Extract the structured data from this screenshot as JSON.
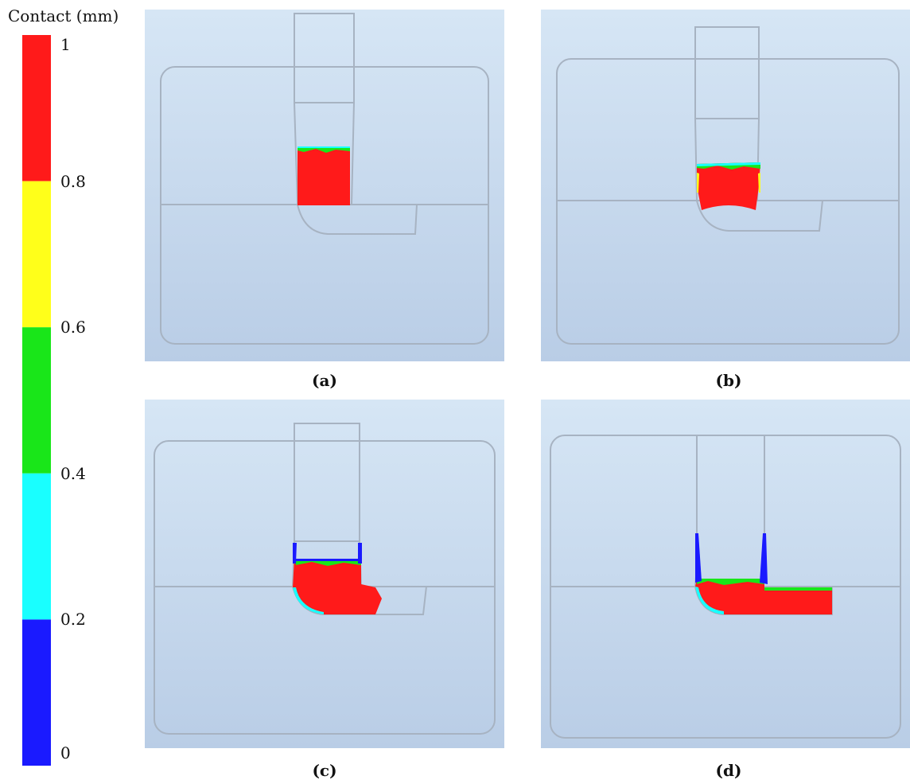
{
  "legend": {
    "title": "Contact (mm)",
    "ticks": [
      {
        "value": "1",
        "frac": 1.0
      },
      {
        "value": "0.8",
        "frac": 0.8
      },
      {
        "value": "0.6",
        "frac": 0.6
      },
      {
        "value": "0.4",
        "frac": 0.4
      },
      {
        "value": "0.2",
        "frac": 0.2
      },
      {
        "value": "0",
        "frac": 0.0
      }
    ],
    "bands": [
      {
        "from": 0.8,
        "to": 1.0,
        "color": "#ff1a1a"
      },
      {
        "from": 0.6,
        "to": 0.8,
        "color": "#ffff1a"
      },
      {
        "from": 0.4,
        "to": 0.6,
        "color": "#19e619"
      },
      {
        "from": 0.2,
        "to": 0.4,
        "color": "#19ffff"
      },
      {
        "from": 0.0,
        "to": 0.2,
        "color": "#1a1aff"
      }
    ]
  },
  "panels": [
    {
      "id": "a",
      "caption": "(a)"
    },
    {
      "id": "b",
      "caption": "(b)"
    },
    {
      "id": "c",
      "caption": "(c)"
    },
    {
      "id": "d",
      "caption": "(d)"
    }
  ],
  "colors": {
    "outline": "#a7b3c2",
    "contact_high": "#ff1a1a",
    "contact_low": "#1a1aff",
    "contact_mid": "#19e619",
    "contact_edge": "#19ffff",
    "contact_yellow": "#ffff1a"
  }
}
